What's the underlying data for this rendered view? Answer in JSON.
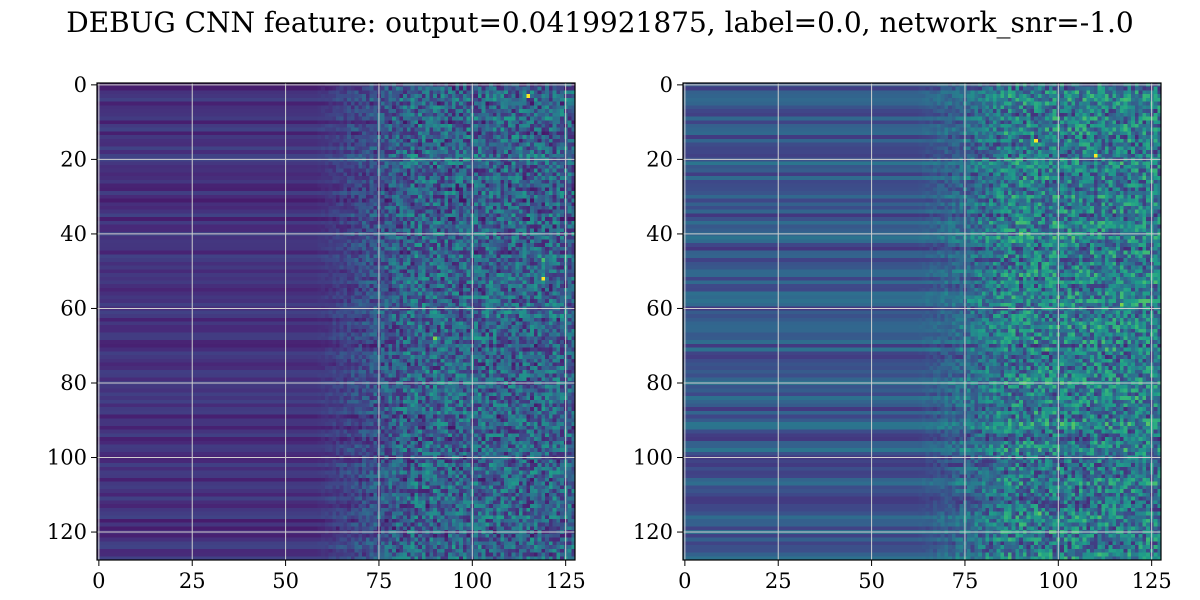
{
  "figure": {
    "title": "DEBUG CNN feature: output=0.0419921875, label=0.0, network_snr=-1.0"
  },
  "chart_data": [
    {
      "type": "heatmap",
      "title": "",
      "xlabel": "",
      "ylabel": "",
      "grid": true,
      "colormap": "viridis",
      "shape": [
        128,
        128
      ],
      "xlim": [
        -0.5,
        127.5
      ],
      "ylim": [
        127.5,
        -0.5
      ],
      "xticks": [
        0,
        25,
        50,
        75,
        100,
        125
      ],
      "xtick_labels": [
        "0",
        "25",
        "50",
        "75",
        "100",
        "125"
      ],
      "yticks": [
        0,
        20,
        40,
        60,
        80,
        100,
        120
      ],
      "ytick_labels": [
        "0",
        "20",
        "40",
        "60",
        "80",
        "100",
        "120"
      ],
      "noise_onset_column": 68,
      "base_intensity": 0.14,
      "hotspots": [
        {
          "row": 3,
          "col": 115,
          "value": 1.0
        },
        {
          "row": 52,
          "col": 119,
          "value": 1.0
        },
        {
          "row": 68,
          "col": 90,
          "value": 0.8
        },
        {
          "row": 47,
          "col": 119,
          "value": 0.7
        }
      ]
    },
    {
      "type": "heatmap",
      "title": "",
      "xlabel": "",
      "ylabel": "",
      "grid": true,
      "colormap": "viridis",
      "shape": [
        128,
        128
      ],
      "xlim": [
        -0.5,
        127.5
      ],
      "ylim": [
        127.5,
        -0.5
      ],
      "xticks": [
        0,
        25,
        50,
        75,
        100,
        125
      ],
      "xtick_labels": [
        "0",
        "25",
        "50",
        "75",
        "100",
        "125"
      ],
      "yticks": [
        0,
        20,
        40,
        60,
        80,
        100,
        120
      ],
      "ytick_labels": [
        "0",
        "20",
        "40",
        "60",
        "80",
        "100",
        "120"
      ],
      "noise_onset_column": 72,
      "base_intensity": 0.27,
      "hotspots": [
        {
          "row": 15,
          "col": 94,
          "value": 1.0
        },
        {
          "row": 19,
          "col": 110,
          "value": 1.0
        },
        {
          "row": 40,
          "col": 90,
          "value": 0.75
        },
        {
          "row": 59,
          "col": 117,
          "value": 0.8
        },
        {
          "row": 103,
          "col": 100,
          "value": 0.7
        },
        {
          "row": 115,
          "col": 95,
          "value": 0.75
        }
      ]
    }
  ]
}
